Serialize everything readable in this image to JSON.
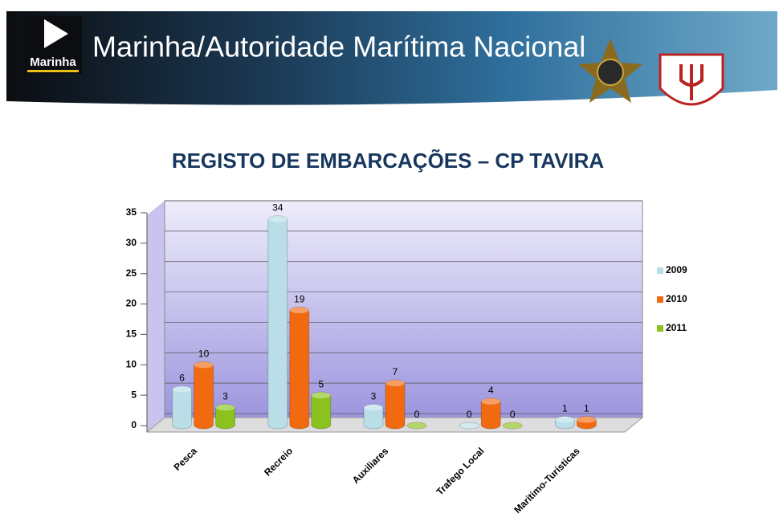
{
  "header": {
    "title": "Marinha/Autoridade Marítima Nacional",
    "logo_text": "Marinha"
  },
  "chart_data": {
    "type": "bar",
    "title": "REGISTO DE EMBARCAÇÕES – CP TAVIRA",
    "categories": [
      "Pesca",
      "Recreio",
      "Auxiliares",
      "Trafego Local",
      "Maritimo-Turisticas"
    ],
    "series": [
      {
        "name": "2009",
        "color": "#b9dee8",
        "values": [
          6,
          34,
          3,
          0,
          1
        ]
      },
      {
        "name": "2010",
        "color": "#f26a10",
        "values": [
          10,
          19,
          7,
          4,
          1
        ]
      },
      {
        "name": "2011",
        "color": "#8cc21e",
        "values": [
          3,
          5,
          0,
          0,
          null
        ]
      }
    ],
    "ylim": [
      0,
      35
    ],
    "yticks": [
      0,
      5,
      10,
      15,
      20,
      25,
      30,
      35
    ],
    "grid": true,
    "legend": "right"
  }
}
